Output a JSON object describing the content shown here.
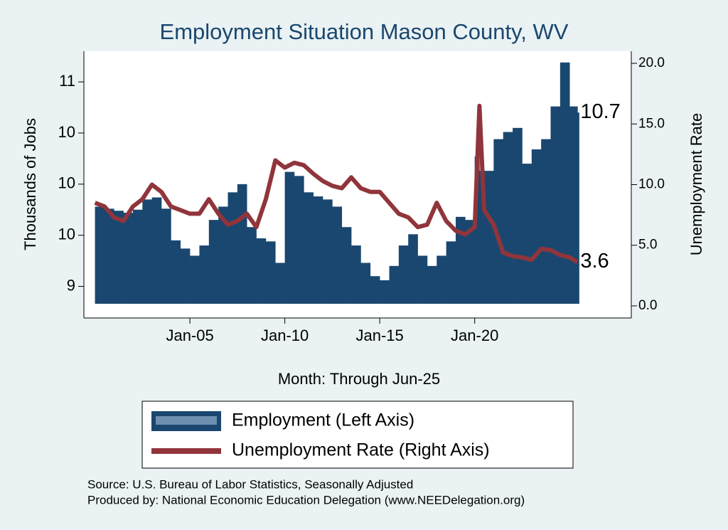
{
  "chart_data": {
    "type": "bar-line",
    "title": "Employment Situation Mason  County, WV",
    "x_label": "Month: Through Jun-25",
    "y_label": "Thousands of Jobs",
    "y2_label": "Unemployment Rate",
    "source": "Source: U.S. Bureau of Labor Statistics, Seasonally Adjusted",
    "producer": "Produced by: National Economic Education Delegation (www.NEEDelegation.org)",
    "x": [
      "Jan-00",
      "Jul-00",
      "Jan-01",
      "Jul-01",
      "Jan-02",
      "Jul-02",
      "Jan-03",
      "Jul-03",
      "Jan-04",
      "Jul-04",
      "Jan-05",
      "Jul-05",
      "Jan-06",
      "Jul-06",
      "Jan-07",
      "Jul-07",
      "Jan-08",
      "Jul-08",
      "Jan-09",
      "Jul-09",
      "Jan-10",
      "Jul-10",
      "Jan-11",
      "Jul-11",
      "Jan-12",
      "Jul-12",
      "Jan-13",
      "Jul-13",
      "Jan-14",
      "Jul-14",
      "Jan-15",
      "Jul-15",
      "Jan-16",
      "Jul-16",
      "Jan-17",
      "Jul-17",
      "Jan-18",
      "Jul-18",
      "Jan-19",
      "Jul-19",
      "Jan-20",
      "Apr-20",
      "Jul-20",
      "Jan-21",
      "Jul-21",
      "Jan-22",
      "Jul-22",
      "Jan-23",
      "Jul-23",
      "Jan-24",
      "Jul-24",
      "Jan-25",
      "Jun-25"
    ],
    "series": [
      {
        "name": "Employment (Left Axis)",
        "color": "#1a476f",
        "kind": "bar",
        "values": [
          9.78,
          9.76,
          9.74,
          9.72,
          9.75,
          9.85,
          9.87,
          9.76,
          9.45,
          9.37,
          9.3,
          9.4,
          9.65,
          9.78,
          9.92,
          10.0,
          9.58,
          9.47,
          9.44,
          9.23,
          10.12,
          10.08,
          9.92,
          9.88,
          9.85,
          9.78,
          9.58,
          9.4,
          9.23,
          9.1,
          9.06,
          9.2,
          9.4,
          9.51,
          9.3,
          9.2,
          9.3,
          9.44,
          9.68,
          9.65,
          10.27,
          10.13,
          10.13,
          10.44,
          10.51,
          10.55,
          10.2,
          10.34,
          10.44,
          10.76,
          11.19,
          10.76,
          10.7
        ]
      },
      {
        "name": "Unemployment Rate (Right Axis)",
        "color": "#90353b",
        "kind": "line",
        "axis": "y2",
        "values": [
          8.5,
          8.2,
          7.3,
          7.0,
          8.2,
          8.8,
          10.0,
          9.4,
          8.2,
          7.9,
          7.6,
          7.6,
          8.8,
          7.6,
          6.7,
          7.0,
          7.6,
          6.5,
          8.8,
          12.0,
          11.4,
          11.8,
          11.6,
          10.9,
          10.3,
          9.9,
          9.7,
          10.6,
          9.7,
          9.4,
          9.4,
          8.5,
          7.6,
          7.3,
          6.5,
          6.7,
          8.5,
          7.0,
          6.2,
          5.9,
          6.5,
          16.5,
          7.9,
          6.7,
          4.4,
          4.1,
          4.0,
          3.8,
          4.7,
          4.6,
          4.2,
          4.0,
          3.6
        ]
      }
    ],
    "xlim": [
      "Jun-99",
      "Apr-28"
    ],
    "xticks": [
      "Jan-05",
      "Jan-10",
      "Jan-15",
      "Jan-20"
    ],
    "ylim": [
      8.83,
      11.3
    ],
    "yticks": [
      {
        "value": 9,
        "label": "9"
      },
      {
        "value": 9.5,
        "label": "10"
      },
      {
        "value": 10,
        "label": "10"
      },
      {
        "value": 10.5,
        "label": "10"
      },
      {
        "value": 11,
        "label": "11"
      }
    ],
    "y2lim": [
      -1,
      21
    ],
    "y2ticks": [
      {
        "value": 0,
        "label": "0.0"
      },
      {
        "value": 5,
        "label": "5.0"
      },
      {
        "value": 10,
        "label": "10.0"
      },
      {
        "value": 15,
        "label": "15.0"
      },
      {
        "value": 20,
        "label": "20.0"
      }
    ],
    "grid": false
  }
}
